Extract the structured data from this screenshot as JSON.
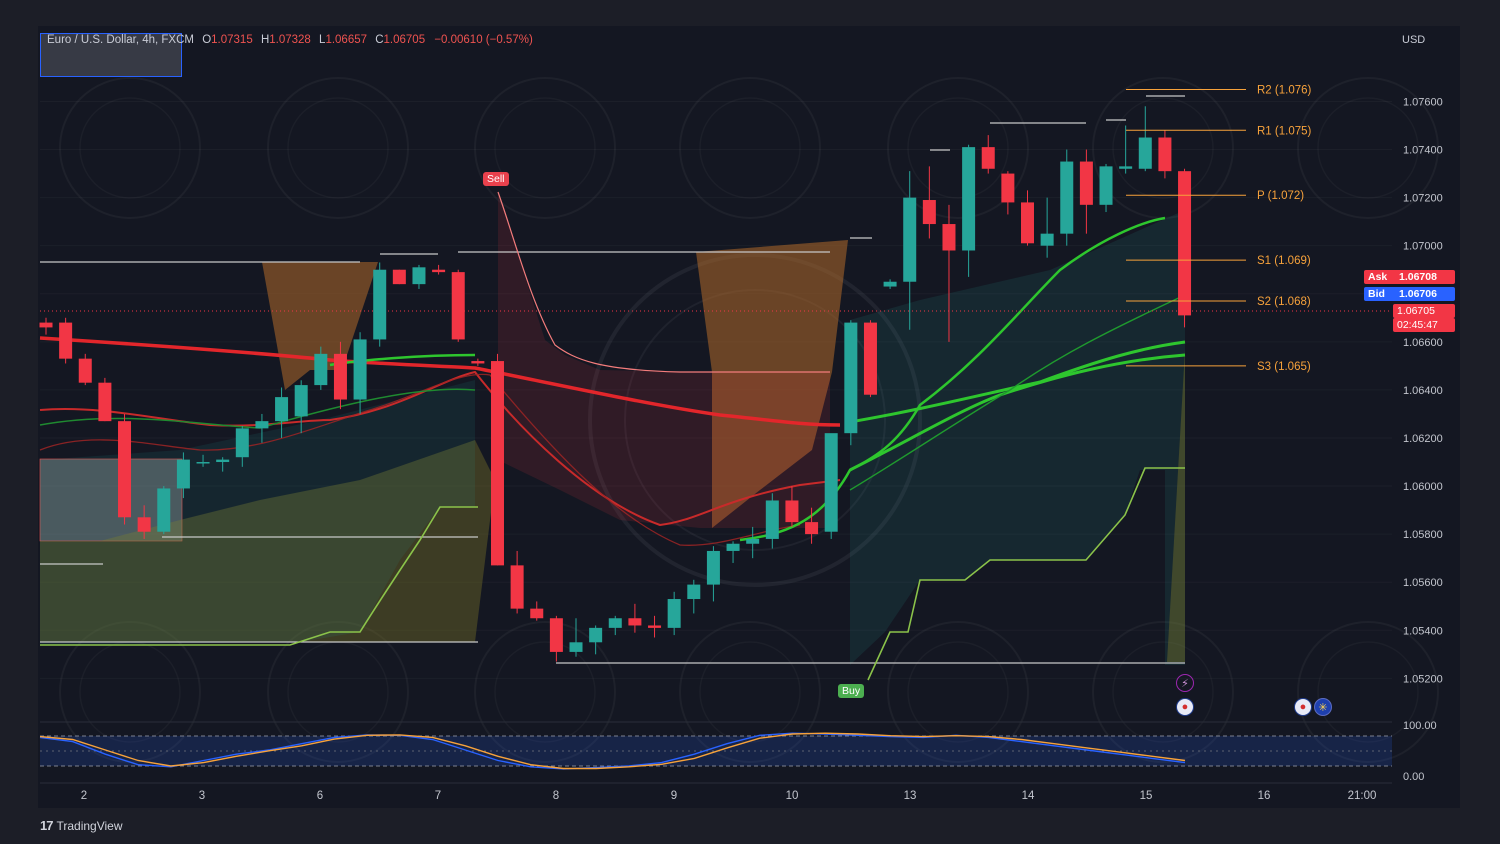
{
  "header": {
    "symbol": "Euro / U.S. Dollar, 4h, FXCM",
    "open_label": "O",
    "open": "1.07315",
    "high_label": "H",
    "high": "1.07328",
    "low_label": "L",
    "low": "1.06657",
    "close_label": "C",
    "close": "1.06705",
    "change": "−0.00610 (−0.57%)",
    "currency": "USD"
  },
  "quote": {
    "ask_label": "Ask",
    "ask": "1.06708",
    "bid_label": "Bid",
    "bid": "1.06706",
    "last": "1.06705",
    "countdown": "02:45:47"
  },
  "signals": {
    "sell": "Sell",
    "buy": "Buy"
  },
  "branding": {
    "name": "TradingView"
  },
  "colors": {
    "up": "#26a69a",
    "down": "#f23645",
    "pivot": "#f7a23b",
    "ema_red": "#e3262b",
    "ema_green": "#2ec62e",
    "ask": "#f23645",
    "bid": "#2962ff"
  },
  "events": [
    "flash-event-icon",
    "us-flag-icon",
    "us-flag-icon",
    "eu-flag-icon"
  ],
  "chart_data": {
    "type": "candlestick",
    "symbol": "Euro / U.S. Dollar",
    "timeframe": "4h",
    "ylabel": "USD",
    "ylim": [
      1.0506,
      1.0776
    ],
    "x_ticks": [
      "2",
      "3",
      "6",
      "7",
      "8",
      "9",
      "10",
      "13",
      "14",
      "15",
      "16",
      "21:00"
    ],
    "y_ticks": [
      "1.07600",
      "1.07400",
      "1.07200",
      "1.07000",
      "1.06800",
      "1.06600",
      "1.06400",
      "1.06200",
      "1.06000",
      "1.05800",
      "1.05600",
      "1.05400",
      "1.05200"
    ],
    "candles": [
      [
        1.0668,
        1.067,
        1.0663,
        1.0666
      ],
      [
        1.0668,
        1.067,
        1.0651,
        1.0653
      ],
      [
        1.0653,
        1.0655,
        1.0642,
        1.0643
      ],
      [
        1.0643,
        1.0645,
        1.0627,
        1.0627
      ],
      [
        1.0627,
        1.063,
        1.0584,
        1.0587
      ],
      [
        1.0587,
        1.0592,
        1.0578,
        1.0581
      ],
      [
        1.0581,
        1.06,
        1.058,
        1.0599
      ],
      [
        1.0599,
        1.0614,
        1.0595,
        1.0611
      ],
      [
        1.061,
        1.0613,
        1.0608,
        1.061
      ],
      [
        1.061,
        1.0612,
        1.0606,
        1.0611
      ],
      [
        1.0612,
        1.0625,
        1.0608,
        1.0624
      ],
      [
        1.0624,
        1.063,
        1.0618,
        1.0627
      ],
      [
        1.0627,
        1.0641,
        1.062,
        1.0637
      ],
      [
        1.0629,
        1.0644,
        1.0622,
        1.0642
      ],
      [
        1.0642,
        1.0658,
        1.064,
        1.0655
      ],
      [
        1.0655,
        1.066,
        1.0632,
        1.0636
      ],
      [
        1.0636,
        1.0664,
        1.063,
        1.0661
      ],
      [
        1.0661,
        1.0693,
        1.0658,
        1.069
      ],
      [
        1.069,
        1.069,
        1.0684,
        1.0684
      ],
      [
        1.0684,
        1.0692,
        1.0682,
        1.0691
      ],
      [
        1.069,
        1.0692,
        1.0688,
        1.0689
      ],
      [
        1.0689,
        1.069,
        1.066,
        1.0661
      ],
      [
        1.0652,
        1.0653,
        1.065,
        1.0651
      ],
      [
        1.0652,
        1.0655,
        1.0567,
        1.0567
      ],
      [
        1.0567,
        1.0573,
        1.0547,
        1.0549
      ],
      [
        1.0549,
        1.0552,
        1.0544,
        1.0545
      ],
      [
        1.0545,
        1.0546,
        1.0527,
        1.0531
      ],
      [
        1.0531,
        1.0545,
        1.0529,
        1.0535
      ],
      [
        1.0535,
        1.0542,
        1.053,
        1.0541
      ],
      [
        1.0541,
        1.0546,
        1.0538,
        1.0545
      ],
      [
        1.0545,
        1.0551,
        1.0539,
        1.0542
      ],
      [
        1.0542,
        1.0546,
        1.0537,
        1.0541
      ],
      [
        1.0541,
        1.0556,
        1.0538,
        1.0553
      ],
      [
        1.0553,
        1.0561,
        1.0547,
        1.0559
      ],
      [
        1.0559,
        1.0575,
        1.0552,
        1.0573
      ],
      [
        1.0573,
        1.0577,
        1.0568,
        1.0576
      ],
      [
        1.0576,
        1.0583,
        1.057,
        1.0578
      ],
      [
        1.0578,
        1.0597,
        1.0574,
        1.0594
      ],
      [
        1.0594,
        1.06,
        1.0583,
        1.0585
      ],
      [
        1.0585,
        1.0591,
        1.0576,
        1.058
      ],
      [
        1.0581,
        1.0621,
        1.0578,
        1.0622
      ],
      [
        1.0622,
        1.0669,
        1.0617,
        1.0668
      ],
      [
        1.0668,
        1.0669,
        1.0637,
        1.0638
      ],
      [
        1.0683,
        1.0686,
        1.0682,
        1.0685
      ],
      [
        1.0685,
        1.0731,
        1.0665,
        1.072
      ],
      [
        1.0719,
        1.0733,
        1.0703,
        1.0709
      ],
      [
        1.0709,
        1.0717,
        1.066,
        1.0698
      ],
      [
        1.0698,
        1.0742,
        1.0687,
        1.0741
      ],
      [
        1.0741,
        1.0746,
        1.073,
        1.0732
      ],
      [
        1.073,
        1.0731,
        1.0713,
        1.0718
      ],
      [
        1.0718,
        1.0723,
        1.07,
        1.0701
      ],
      [
        1.07,
        1.072,
        1.0695,
        1.0705
      ],
      [
        1.0705,
        1.074,
        1.07,
        1.0735
      ],
      [
        1.0735,
        1.074,
        1.0705,
        1.0717
      ],
      [
        1.0717,
        1.0734,
        1.0714,
        1.0733
      ],
      [
        1.0732,
        1.075,
        1.073,
        1.0733
      ],
      [
        1.0732,
        1.0758,
        1.0731,
        1.0745
      ],
      [
        1.0745,
        1.0748,
        1.0728,
        1.0731
      ],
      [
        1.0731,
        1.0732,
        1.0666,
        1.0671
      ]
    ],
    "pivot_levels": [
      {
        "label": "R2 (1.076)",
        "value": 1.0765
      },
      {
        "label": "R1 (1.075)",
        "value": 1.0748
      },
      {
        "label": "P (1.072)",
        "value": 1.0721
      },
      {
        "label": "S1 (1.069)",
        "value": 1.0694
      },
      {
        "label": "S2 (1.068)",
        "value": 1.0677
      },
      {
        "label": "S3 (1.065)",
        "value": 1.065
      }
    ],
    "oscillator": {
      "y_ticks": [
        "100.00",
        "0.00"
      ],
      "ylim": [
        0,
        100
      ],
      "series": [
        {
          "values": [
            80,
            70,
            40,
            15,
            10,
            25,
            40,
            50,
            65,
            80,
            86,
            85,
            75,
            50,
            25,
            10,
            5,
            8,
            12,
            20,
            40,
            65,
            85,
            90,
            88,
            85,
            82,
            80,
            85,
            80,
            70,
            60,
            50,
            40,
            30,
            20
          ]
        },
        {
          "values": [
            82,
            75,
            50,
            25,
            12,
            20,
            35,
            48,
            60,
            76,
            85,
            86,
            80,
            60,
            35,
            15,
            6,
            6,
            10,
            16,
            30,
            55,
            78,
            88,
            90,
            88,
            84,
            82,
            84,
            82,
            75,
            65,
            55,
            45,
            35,
            25
          ]
        }
      ]
    }
  }
}
